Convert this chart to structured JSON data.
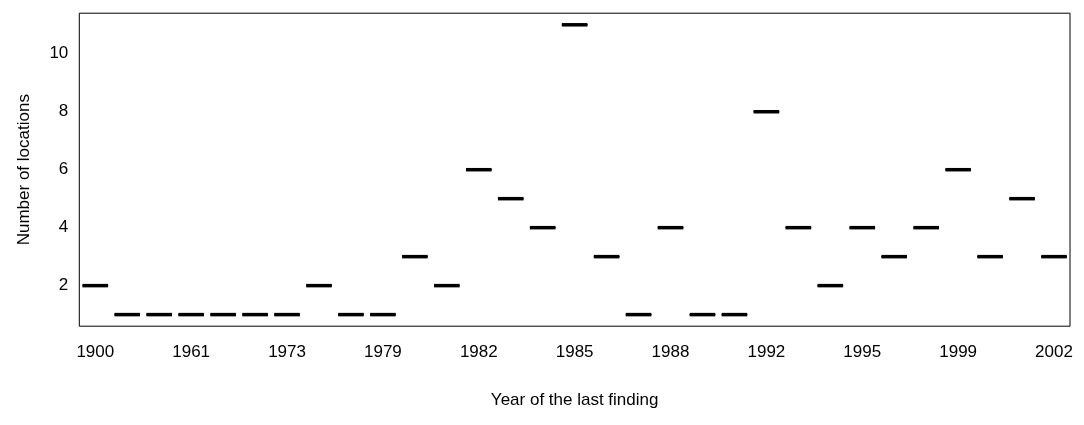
{
  "chart_data": {
    "type": "box",
    "xlabel": "Year of the last finding",
    "ylabel": "Number of locations",
    "categories": [
      "1900",
      null,
      null,
      "1961",
      null,
      null,
      "1973",
      null,
      null,
      "1979",
      null,
      null,
      "1982",
      null,
      null,
      "1985",
      null,
      null,
      "1988",
      null,
      null,
      "1992",
      null,
      null,
      "1995",
      null,
      null,
      "1999",
      null,
      null,
      "2002"
    ],
    "boxes": [
      {
        "low": 2,
        "q1": 2,
        "median": 2,
        "q3": 2,
        "high": 2
      },
      {
        "low": 1,
        "q1": 1,
        "median": 1,
        "q3": 1,
        "high": 1
      },
      {
        "low": 1,
        "q1": 1,
        "median": 1,
        "q3": 1,
        "high": 1
      },
      {
        "low": 1,
        "q1": 1,
        "median": 1,
        "q3": 1,
        "high": 1
      },
      {
        "low": 1,
        "q1": 1,
        "median": 1,
        "q3": 1,
        "high": 1
      },
      {
        "low": 1,
        "q1": 1,
        "median": 1,
        "q3": 1,
        "high": 1
      },
      {
        "low": 1,
        "q1": 1,
        "median": 1,
        "q3": 1,
        "high": 1
      },
      {
        "low": 2,
        "q1": 2,
        "median": 2,
        "q3": 2,
        "high": 2
      },
      {
        "low": 1,
        "q1": 1,
        "median": 1,
        "q3": 1,
        "high": 1
      },
      {
        "low": 1,
        "q1": 1,
        "median": 1,
        "q3": 1,
        "high": 1
      },
      {
        "low": 3,
        "q1": 3,
        "median": 3,
        "q3": 3,
        "high": 3
      },
      {
        "low": 2,
        "q1": 2,
        "median": 2,
        "q3": 2,
        "high": 2
      },
      {
        "low": 6,
        "q1": 6,
        "median": 6,
        "q3": 6,
        "high": 6
      },
      {
        "low": 5,
        "q1": 5,
        "median": 5,
        "q3": 5,
        "high": 5
      },
      {
        "low": 4,
        "q1": 4,
        "median": 4,
        "q3": 4,
        "high": 4
      },
      {
        "low": 11,
        "q1": 11,
        "median": 11,
        "q3": 11,
        "high": 11
      },
      {
        "low": 3,
        "q1": 3,
        "median": 3,
        "q3": 3,
        "high": 3
      },
      {
        "low": 1,
        "q1": 1,
        "median": 1,
        "q3": 1,
        "high": 1
      },
      {
        "low": 4,
        "q1": 4,
        "median": 4,
        "q3": 4,
        "high": 4
      },
      {
        "low": 1,
        "q1": 1,
        "median": 1,
        "q3": 1,
        "high": 1
      },
      {
        "low": 1,
        "q1": 1,
        "median": 1,
        "q3": 1,
        "high": 1
      },
      {
        "low": 8,
        "q1": 8,
        "median": 8,
        "q3": 8,
        "high": 8
      },
      {
        "low": 4,
        "q1": 4,
        "median": 4,
        "q3": 4,
        "high": 4
      },
      {
        "low": 2,
        "q1": 2,
        "median": 2,
        "q3": 2,
        "high": 2
      },
      {
        "low": 4,
        "q1": 4,
        "median": 4,
        "q3": 4,
        "high": 4
      },
      {
        "low": 3,
        "q1": 3,
        "median": 3,
        "q3": 3,
        "high": 3
      },
      {
        "low": 4,
        "q1": 4,
        "median": 4,
        "q3": 4,
        "high": 4
      },
      {
        "low": 6,
        "q1": 6,
        "median": 6,
        "q3": 6,
        "high": 6
      },
      {
        "low": 3,
        "q1": 3,
        "median": 3,
        "q3": 3,
        "high": 3
      },
      {
        "low": 5,
        "q1": 5,
        "median": 5,
        "q3": 5,
        "high": 5
      },
      {
        "low": 3,
        "q1": 3,
        "median": 3,
        "q3": 3,
        "high": 3
      }
    ],
    "color": "#000000",
    "ylim": [
      0.6,
      11.4
    ],
    "yticks": [
      2,
      4,
      6,
      8,
      10
    ],
    "grid": false,
    "legend": false
  }
}
